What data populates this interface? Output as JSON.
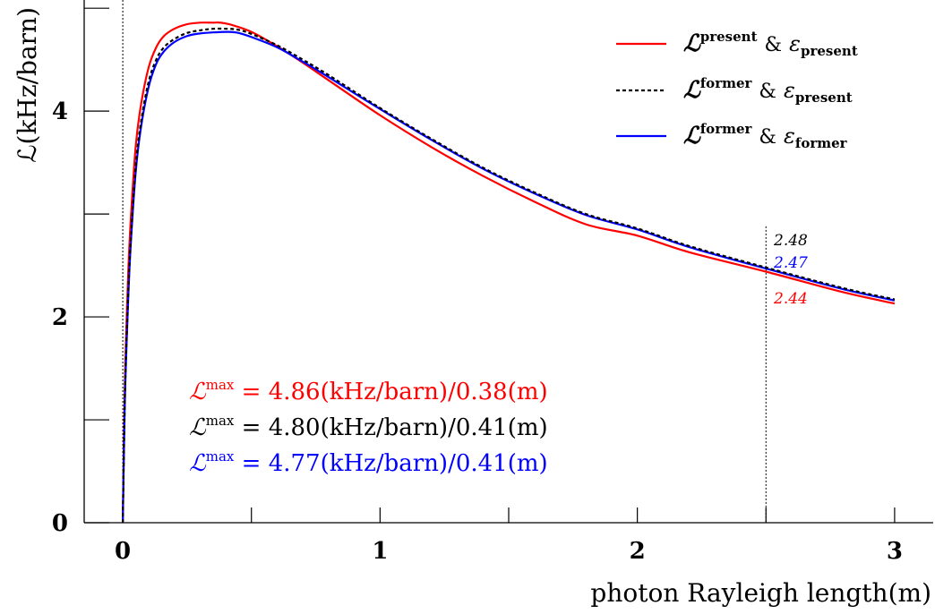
{
  "chart_data": {
    "type": "line",
    "xlabel": "photon Rayleigh length(m)",
    "ylabel": "ℒ(kHz/barn)",
    "xlim": [
      -0.15,
      3.15
    ],
    "ylim": [
      0,
      5.08
    ],
    "x_ticks": [
      0,
      1,
      2,
      3
    ],
    "x_tick_labels": [
      "0",
      "1",
      "2",
      "3"
    ],
    "x_minor_ticks": [
      0.5,
      1.5,
      2.5
    ],
    "y_ticks": [
      0,
      2,
      4
    ],
    "y_tick_labels": [
      "0",
      "2",
      "4"
    ],
    "y_minor_ticks": [
      1,
      3,
      5
    ],
    "grid": false,
    "legend_position": "top-right",
    "reference_lines": [
      0,
      2.5
    ],
    "series": [
      {
        "key": "present",
        "legend_main": "ℒ",
        "legend_sup": "present",
        "legend_amp": "&",
        "legend_eps": "ε",
        "legend_sub": "present",
        "color": "#ff0000",
        "style": "solid",
        "x": [
          0.0,
          0.005,
          0.01,
          0.02,
          0.03,
          0.05,
          0.07,
          0.1,
          0.13,
          0.16,
          0.2,
          0.25,
          0.3,
          0.35,
          0.38,
          0.42,
          0.5,
          0.6,
          0.7,
          0.8,
          1.0,
          1.2,
          1.4,
          1.6,
          1.8,
          2.0,
          2.2,
          2.5,
          2.8,
          3.0
        ],
        "y": [
          0.0,
          0.9,
          1.55,
          2.35,
          2.9,
          3.65,
          4.05,
          4.42,
          4.62,
          4.73,
          4.8,
          4.845,
          4.86,
          4.86,
          4.86,
          4.84,
          4.77,
          4.63,
          4.47,
          4.3,
          3.96,
          3.65,
          3.37,
          3.12,
          2.9,
          2.79,
          2.63,
          2.44,
          2.24,
          2.13
        ]
      },
      {
        "key": "former_present",
        "legend_main": "ℒ",
        "legend_sup": "former",
        "legend_amp": "&",
        "legend_eps": "ε",
        "legend_sub": "present",
        "color": "#000000",
        "style": "dashed",
        "x": [
          0.0,
          0.005,
          0.01,
          0.02,
          0.03,
          0.05,
          0.07,
          0.1,
          0.13,
          0.16,
          0.2,
          0.25,
          0.3,
          0.35,
          0.41,
          0.45,
          0.5,
          0.6,
          0.7,
          0.8,
          1.0,
          1.2,
          1.4,
          1.6,
          1.8,
          2.0,
          2.2,
          2.5,
          2.8,
          3.0
        ],
        "y": [
          0.0,
          0.8,
          1.4,
          2.15,
          2.7,
          3.45,
          3.88,
          4.28,
          4.5,
          4.62,
          4.7,
          4.76,
          4.785,
          4.8,
          4.8,
          4.79,
          4.75,
          4.64,
          4.5,
          4.35,
          4.03,
          3.73,
          3.45,
          3.21,
          3.0,
          2.86,
          2.69,
          2.48,
          2.28,
          2.17
        ]
      },
      {
        "key": "former",
        "legend_main": "ℒ",
        "legend_sup": "former",
        "legend_amp": "&",
        "legend_eps": "ε",
        "legend_sub": "former",
        "color": "#0000ff",
        "style": "solid",
        "x": [
          0.0,
          0.005,
          0.01,
          0.02,
          0.03,
          0.05,
          0.07,
          0.1,
          0.13,
          0.16,
          0.2,
          0.25,
          0.3,
          0.35,
          0.41,
          0.45,
          0.5,
          0.6,
          0.7,
          0.8,
          1.0,
          1.2,
          1.4,
          1.6,
          1.8,
          2.0,
          2.2,
          2.5,
          2.8,
          3.0
        ],
        "y": [
          0.0,
          0.78,
          1.37,
          2.1,
          2.66,
          3.4,
          3.83,
          4.23,
          4.46,
          4.58,
          4.67,
          4.73,
          4.755,
          4.765,
          4.77,
          4.76,
          4.72,
          4.62,
          4.48,
          4.33,
          4.02,
          3.72,
          3.44,
          3.2,
          2.99,
          2.85,
          2.68,
          2.47,
          2.27,
          2.16
        ]
      }
    ],
    "annotations": [
      {
        "sym": "ℒ",
        "sup": "max",
        "text": " = 4.86(kHz/barn)/0.38(m)",
        "color": "#ff0000"
      },
      {
        "sym": "ℒ",
        "sup": "max",
        "text": " = 4.80(kHz/barn)/0.41(m)",
        "color": "#000000"
      },
      {
        "sym": "ℒ",
        "sup": "max",
        "text": " = 4.77(kHz/barn)/0.41(m)",
        "color": "#0000ff"
      }
    ],
    "value_labels": [
      {
        "text": "2.48",
        "color": "#000000"
      },
      {
        "text": "2.47",
        "color": "#0000ff"
      },
      {
        "text": "2.44",
        "color": "#ff0000"
      }
    ]
  }
}
